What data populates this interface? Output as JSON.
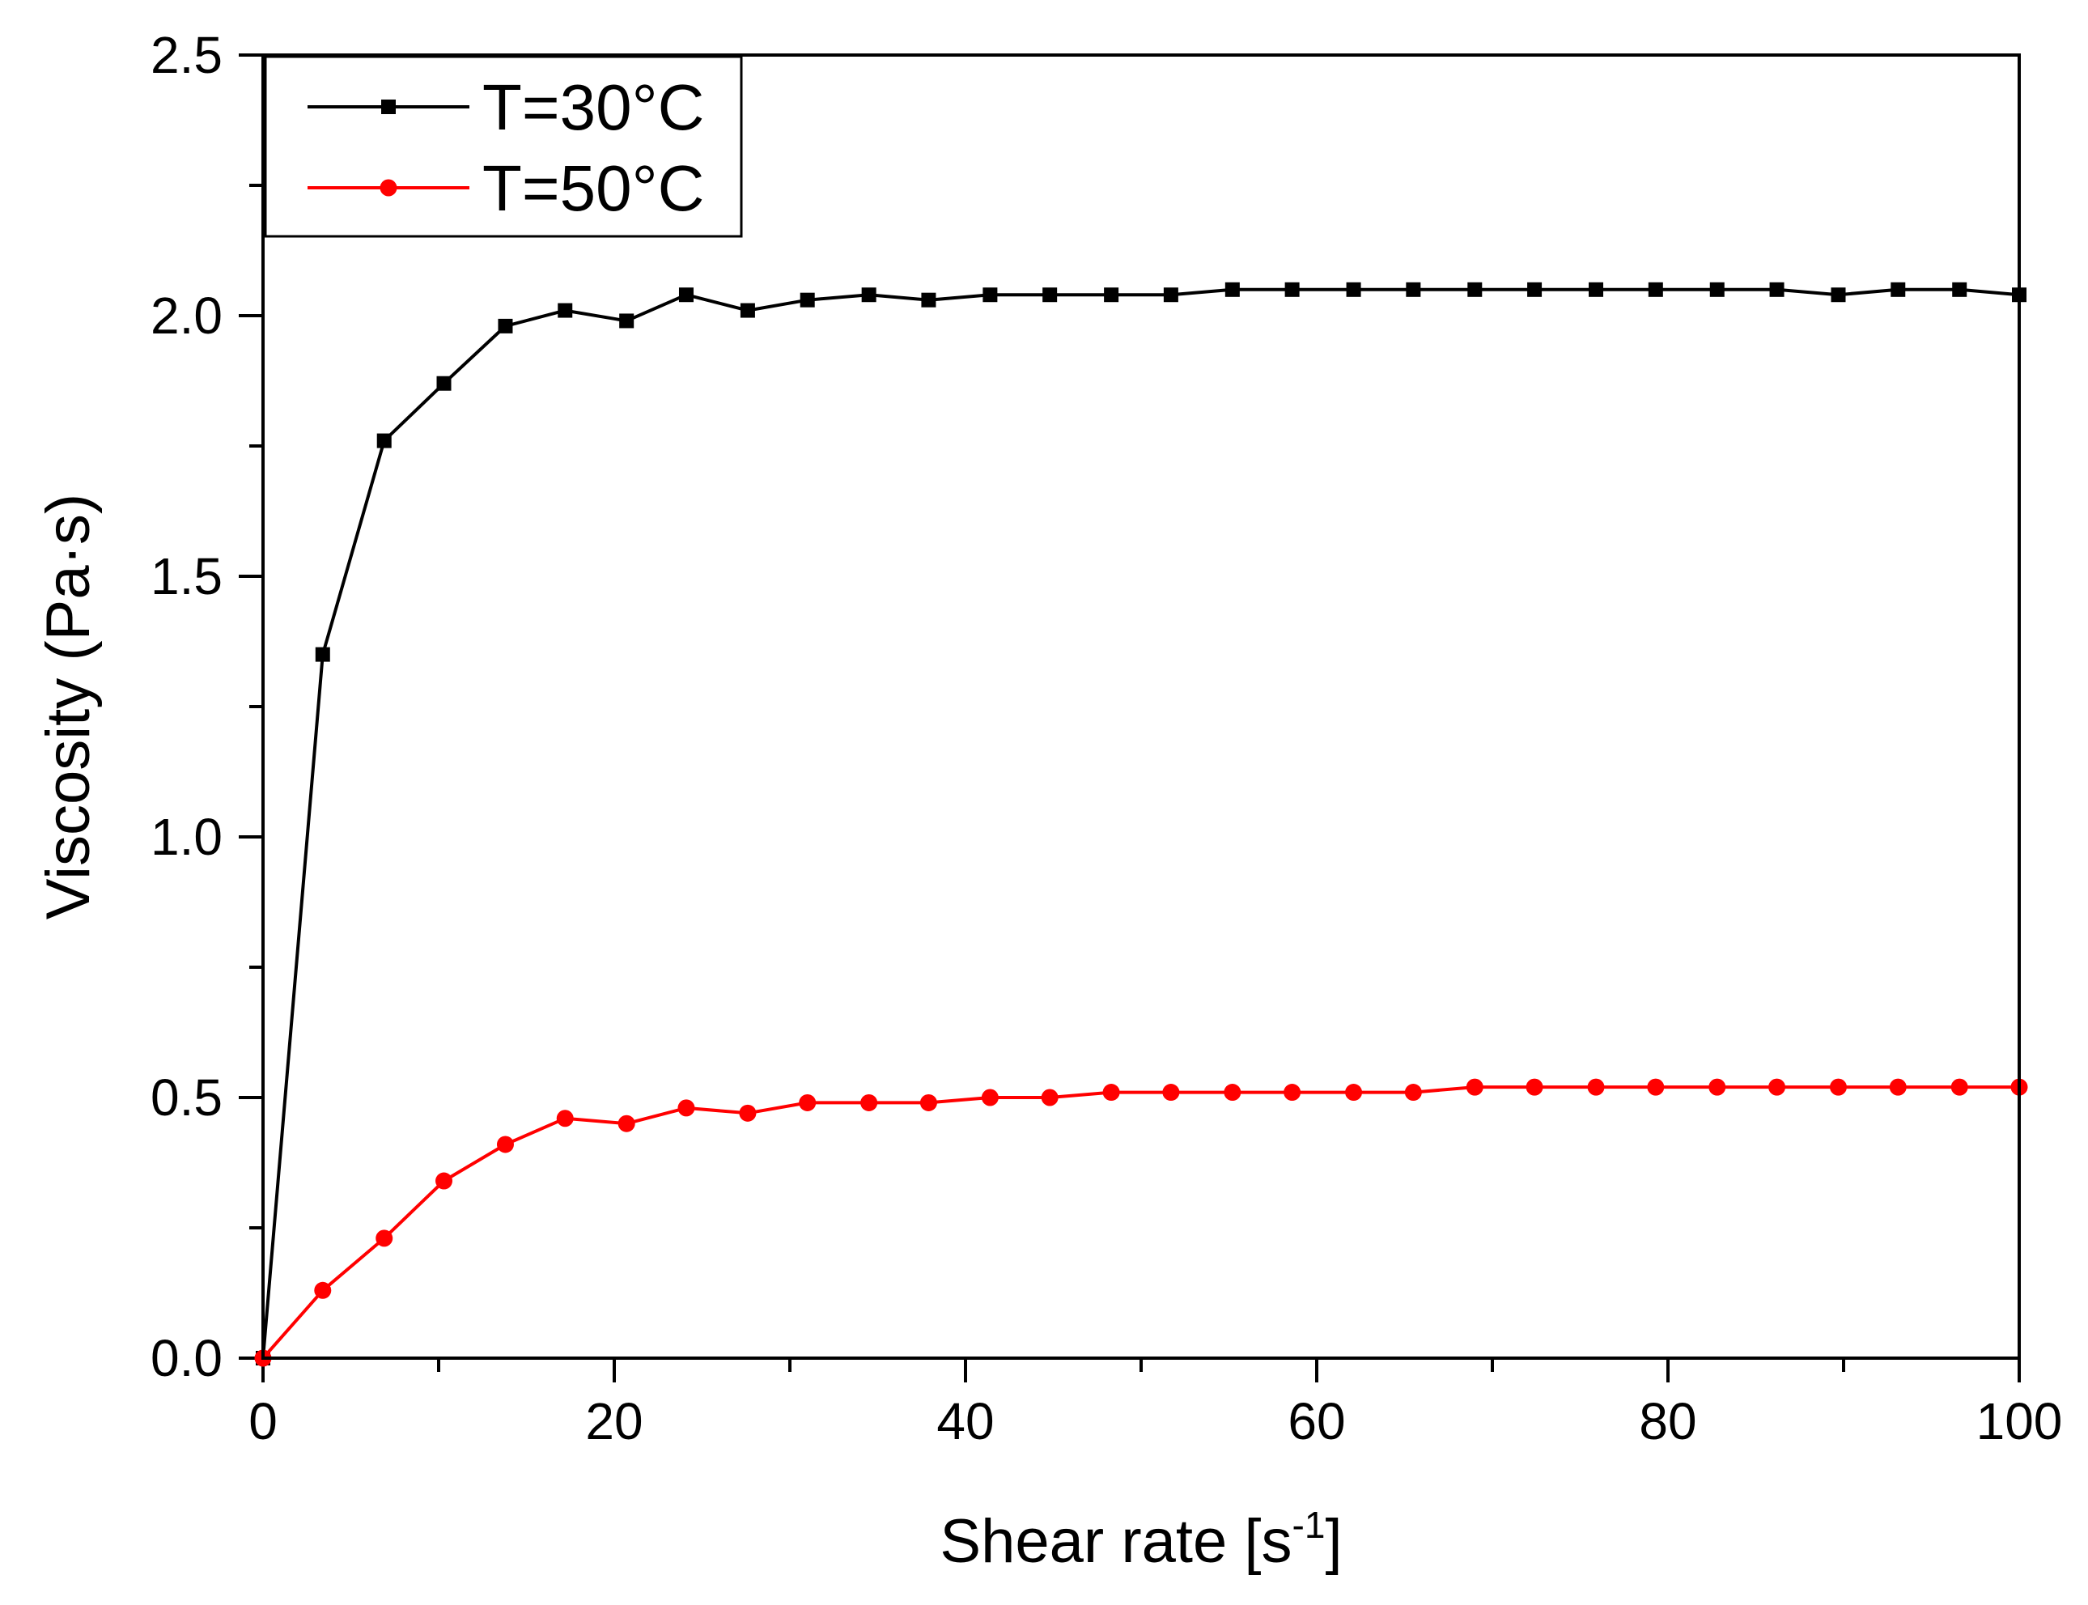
{
  "chart_data": {
    "type": "line",
    "title": "",
    "xlabel": "Shear rate [s",
    "xlabel_superscript": "-1",
    "xlabel_suffix": "]",
    "ylabel": "Viscosity (Pa·s)",
    "xlim": [
      0,
      100
    ],
    "ylim": [
      0,
      2.5
    ],
    "x_ticks": [
      0,
      20,
      40,
      60,
      80,
      100
    ],
    "x_tick_labels": [
      "0",
      "20",
      "40",
      "60",
      "80",
      "100"
    ],
    "y_ticks": [
      0,
      0.5,
      1.0,
      1.5,
      2.0,
      2.5
    ],
    "y_tick_labels": [
      "0.0",
      "0.5",
      "1.0",
      "1.5",
      "2.0",
      "2.5"
    ],
    "grid": false,
    "legend_position": "top-left",
    "series": [
      {
        "name": "T=30°C",
        "color": "#000000",
        "marker": "square",
        "x": [
          0,
          3.4,
          6.9,
          10.3,
          13.8,
          17.2,
          20.7,
          24.1,
          27.6,
          31.0,
          34.5,
          37.9,
          41.4,
          44.8,
          48.3,
          51.7,
          55.2,
          58.6,
          62.1,
          65.5,
          69.0,
          72.4,
          75.9,
          79.3,
          82.8,
          86.2,
          89.7,
          93.1,
          96.6,
          100
        ],
        "values": [
          0,
          1.35,
          1.76,
          1.87,
          1.98,
          2.01,
          1.99,
          2.04,
          2.01,
          2.03,
          2.04,
          2.03,
          2.04,
          2.04,
          2.04,
          2.04,
          2.05,
          2.05,
          2.05,
          2.05,
          2.05,
          2.05,
          2.05,
          2.05,
          2.05,
          2.05,
          2.04,
          2.05,
          2.05,
          2.04
        ]
      },
      {
        "name": "T=50°C",
        "color": "#ff0000",
        "marker": "circle",
        "x": [
          0,
          3.4,
          6.9,
          10.3,
          13.8,
          17.2,
          20.7,
          24.1,
          27.6,
          31.0,
          34.5,
          37.9,
          41.4,
          44.8,
          48.3,
          51.7,
          55.2,
          58.6,
          62.1,
          65.5,
          69.0,
          72.4,
          75.9,
          79.3,
          82.8,
          86.2,
          89.7,
          93.1,
          96.6,
          100
        ],
        "values": [
          0,
          0.13,
          0.23,
          0.34,
          0.41,
          0.46,
          0.45,
          0.48,
          0.47,
          0.49,
          0.49,
          0.49,
          0.5,
          0.5,
          0.51,
          0.51,
          0.51,
          0.51,
          0.51,
          0.51,
          0.52,
          0.52,
          0.52,
          0.52,
          0.52,
          0.52,
          0.52,
          0.52,
          0.52,
          0.52
        ]
      }
    ]
  }
}
